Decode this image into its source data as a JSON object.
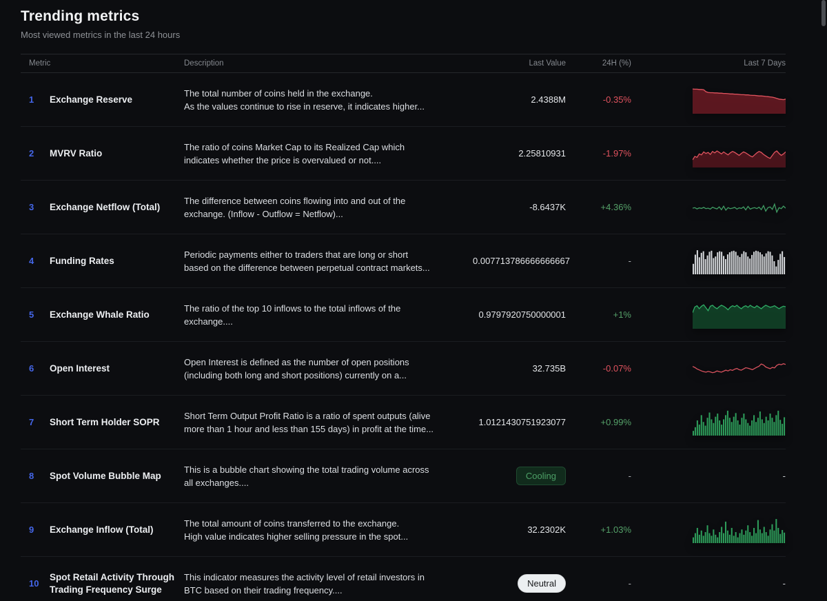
{
  "page": {
    "title": "Trending metrics",
    "subtitle": "Most viewed metrics in the last 24 hours"
  },
  "table": {
    "headers": {
      "metric": "Metric",
      "description": "Description",
      "last_value": "Last Value",
      "change": "24H (%)",
      "last7": "Last 7 Days"
    },
    "empty_placeholder": "-",
    "colors": {
      "red_line": "#e2545f",
      "green_line": "#35a160",
      "white_bars": "#d6d9dc",
      "green_bars": "#2e9e5b",
      "rank_blue": "#4466e8",
      "negative_text": "#e0525e",
      "positive_text": "#55a169"
    },
    "rows": [
      {
        "rank": "1",
        "name": "Exchange Reserve",
        "description": [
          "The total number of coins held in the exchange.",
          "As the values continue to rise in reserve, it indicates higher..."
        ],
        "last_value": "2.4388M",
        "value_type": "text",
        "change": "-0.35%",
        "change_sign": "negative",
        "sparkline": {
          "type": "area",
          "color": "#e2545f",
          "fill": "rgba(160,35,48,0.55)",
          "values": [
            97,
            96,
            96,
            95,
            95,
            94,
            86,
            83,
            82,
            82,
            81,
            81,
            80,
            80,
            79,
            79,
            78,
            77,
            77,
            76,
            76,
            75,
            74,
            74,
            73,
            73,
            72,
            71,
            71,
            70,
            69,
            69,
            68,
            67,
            66,
            65,
            64,
            62,
            59,
            56,
            55,
            54,
            56
          ]
        }
      },
      {
        "rank": "2",
        "name": "MVRV Ratio",
        "description": [
          "The ratio of coins Market Cap to its Realized Cap which",
          "indicates whether the price is overvalued or not...."
        ],
        "last_value": "2.25810931",
        "value_type": "text",
        "change": "-1.97%",
        "change_sign": "negative",
        "sparkline": {
          "type": "area",
          "color": "#e2545f",
          "fill": "rgba(150,32,45,0.45)",
          "values": [
            28,
            42,
            38,
            52,
            48,
            60,
            54,
            58,
            50,
            62,
            56,
            64,
            58,
            52,
            60,
            54,
            48,
            56,
            62,
            58,
            52,
            46,
            54,
            60,
            56,
            50,
            44,
            40,
            48,
            56,
            62,
            58,
            50,
            44,
            38,
            34,
            46,
            58,
            64,
            54,
            46,
            52,
            60
          ]
        }
      },
      {
        "rank": "3",
        "name": "Exchange Netflow (Total)",
        "description": [
          "The difference between coins flowing into and out of the",
          "exchange. (Inflow - Outflow = Netflow)..."
        ],
        "last_value": "-8.6437K",
        "value_type": "text",
        "change": "+4.36%",
        "change_sign": "positive",
        "sparkline": {
          "type": "line",
          "color": "#3f9c63",
          "fill": null,
          "values": [
            50,
            52,
            47,
            51,
            49,
            53,
            48,
            50,
            46,
            54,
            50,
            47,
            55,
            44,
            58,
            42,
            52,
            48,
            50,
            53,
            46,
            51,
            49,
            55,
            43,
            57,
            46,
            50,
            52,
            48,
            54,
            44,
            60,
            38,
            52,
            55,
            45,
            66,
            34,
            52,
            48,
            58,
            50
          ]
        }
      },
      {
        "rank": "4",
        "name": "Funding Rates",
        "description": [
          "Periodic payments either to traders that are long or short",
          "based on the difference between perpetual contract markets..."
        ],
        "last_value": "0.007713786666666667",
        "value_type": "text",
        "change": "-",
        "change_sign": "none",
        "sparkline": {
          "type": "bars",
          "color": "#d6d9dc",
          "fill": null,
          "values": [
            40,
            75,
            92,
            65,
            82,
            88,
            58,
            72,
            86,
            90,
            62,
            68,
            84,
            88,
            86,
            70,
            58,
            76,
            84,
            88,
            90,
            86,
            72,
            66,
            78,
            88,
            84,
            68,
            60,
            74,
            86,
            90,
            88,
            84,
            76,
            68,
            80,
            88,
            86,
            72,
            50,
            30,
            55,
            78,
            88,
            66
          ]
        }
      },
      {
        "rank": "5",
        "name": "Exchange Whale Ratio",
        "description": [
          "The ratio of the top 10 inflows to the total inflows of the",
          "exchange...."
        ],
        "last_value": "0.9797920750000001",
        "value_type": "text",
        "change": "+1%",
        "change_sign": "positive",
        "sparkline": {
          "type": "area",
          "color": "#2fae66",
          "fill": "rgba(22,95,54,0.6)",
          "values": [
            62,
            85,
            90,
            78,
            88,
            94,
            82,
            70,
            88,
            92,
            84,
            78,
            86,
            92,
            88,
            82,
            74,
            84,
            90,
            86,
            92,
            84,
            78,
            86,
            90,
            84,
            92,
            86,
            82,
            90,
            84,
            78,
            86,
            92,
            88,
            84,
            86,
            90,
            84,
            78,
            84,
            88,
            86
          ]
        }
      },
      {
        "rank": "6",
        "name": "Open Interest",
        "description": [
          "Open Interest is defined as the number of open positions",
          "(including both long and short positions) currently on a..."
        ],
        "last_value": "32.735B",
        "value_type": "text",
        "change": "-0.07%",
        "change_sign": "negative",
        "sparkline": {
          "type": "line",
          "color": "#d9525e",
          "fill": null,
          "values": [
            62,
            58,
            52,
            48,
            44,
            41,
            39,
            42,
            40,
            37,
            39,
            44,
            41,
            39,
            43,
            47,
            44,
            49,
            46,
            51,
            54,
            49,
            47,
            52,
            57,
            55,
            52,
            49,
            54,
            59,
            63,
            72,
            68,
            60,
            56,
            53,
            58,
            56,
            66,
            71,
            69,
            73,
            70
          ]
        }
      },
      {
        "rank": "7",
        "name": "Short Term Holder SOPR",
        "description": [
          "Short Term Output Profit Ratio is a ratio of spent outputs (alive",
          "more than 1 hour and less than 155 days) in profit at the time..."
        ],
        "last_value": "1.0121430751923077",
        "value_type": "text",
        "change": "+0.99%",
        "change_sign": "positive",
        "sparkline": {
          "type": "bars",
          "color": "#2e9e5b",
          "fill": null,
          "values": [
            18,
            32,
            58,
            42,
            78,
            52,
            38,
            68,
            88,
            62,
            48,
            72,
            84,
            58,
            42,
            62,
            78,
            95,
            68,
            52,
            72,
            86,
            58,
            42,
            68,
            84,
            62,
            48,
            38,
            58,
            78,
            52,
            68,
            92,
            62,
            48,
            72,
            58,
            84,
            68,
            52,
            78,
            95,
            60,
            45,
            70
          ]
        }
      },
      {
        "rank": "8",
        "name": "Spot Volume Bubble Map",
        "description": [
          "This is a bubble chart showing the total trading volume across",
          "all exchanges...."
        ],
        "last_value": "Cooling",
        "value_type": "badge",
        "badge_style": "cooling",
        "change": "-",
        "change_sign": "none",
        "sparkline": null
      },
      {
        "rank": "9",
        "name": "Exchange Inflow (Total)",
        "description": [
          "The total amount of coins transferred to the exchange.",
          "High value indicates higher selling pressure in the spot..."
        ],
        "last_value": "32.2302K",
        "value_type": "text",
        "change": "+1.03%",
        "change_sign": "positive",
        "sparkline": {
          "type": "bars",
          "color": "#2e9e5b",
          "fill": null,
          "values": [
            22,
            38,
            58,
            32,
            48,
            28,
            42,
            68,
            38,
            28,
            52,
            32,
            22,
            42,
            62,
            38,
            82,
            48,
            32,
            58,
            28,
            42,
            22,
            38,
            52,
            32,
            48,
            68,
            42,
            28,
            58,
            38,
            88,
            52,
            38,
            62,
            42,
            28,
            52,
            72,
            48,
            92,
            58,
            35,
            50,
            40
          ]
        }
      },
      {
        "rank": "10",
        "name": "Spot Retail Activity Through Trading Frequency Surge",
        "description": [
          "This indicator measures the activity level of retail investors in",
          "BTC based on their trading frequency...."
        ],
        "last_value": "Neutral",
        "value_type": "badge",
        "badge_style": "neutral",
        "change": "-",
        "change_sign": "none",
        "sparkline": null
      }
    ]
  }
}
